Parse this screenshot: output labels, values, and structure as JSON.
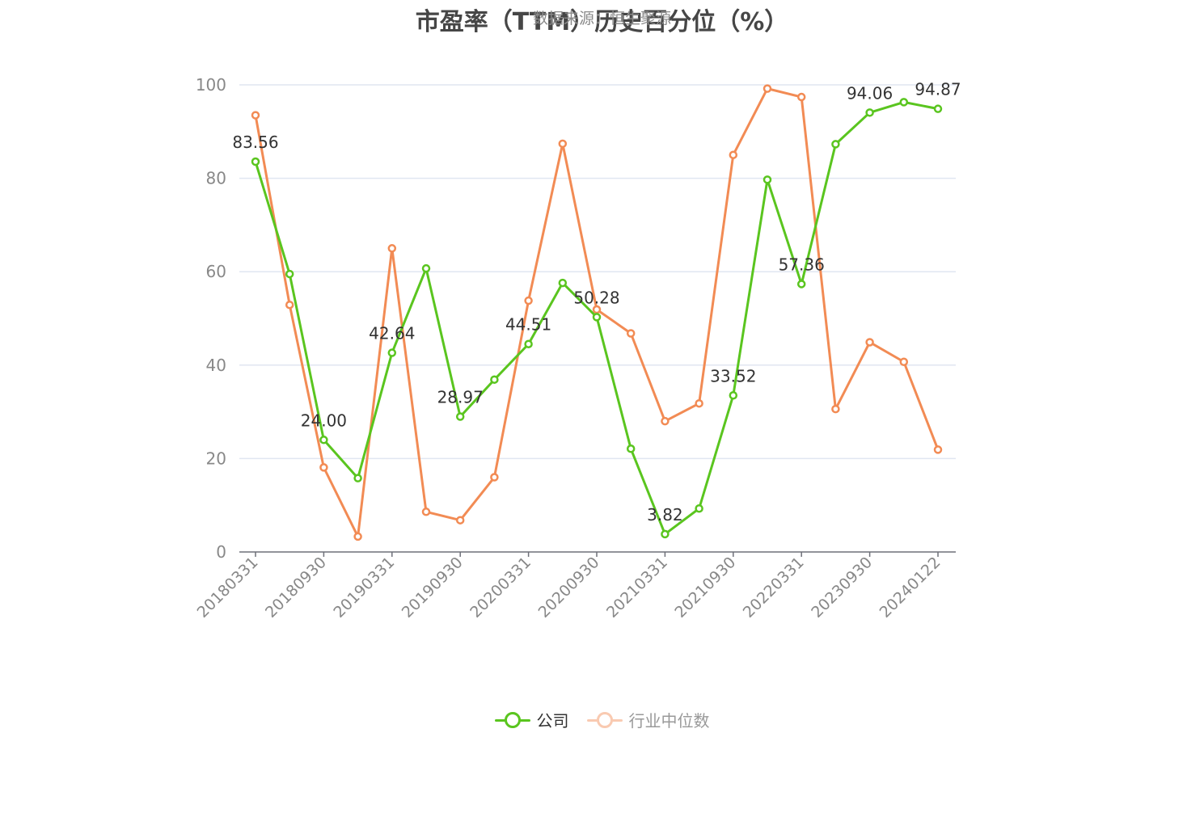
{
  "title": "市盈率（TTM）历史百分位（%）",
  "subtitle": "数据来源：恒生聚源",
  "colors": {
    "company": "#5ac51f",
    "industry": "#f28b54",
    "axis": "#6e7079",
    "grid": "#e0e6f1",
    "label": "#333333"
  },
  "chart_data": {
    "type": "line",
    "x_tick_labels": [
      "20180331",
      "20180930",
      "20190331",
      "20190930",
      "20200331",
      "20200930",
      "20210331",
      "20210930",
      "20220331",
      "20230930",
      "20240122"
    ],
    "x_tick_indices": [
      0,
      2,
      4,
      6,
      8,
      10,
      12,
      14,
      16,
      18,
      20
    ],
    "ylim": [
      0,
      100
    ],
    "y_ticks": [
      0,
      20,
      40,
      60,
      80,
      100
    ],
    "grid": true,
    "legend_position": "bottom-center",
    "series": [
      {
        "name": "公司",
        "values": [
          83.56,
          59.5,
          24.0,
          15.8,
          42.64,
          60.7,
          28.97,
          36.9,
          44.51,
          57.6,
          50.28,
          22.1,
          3.82,
          9.3,
          33.52,
          79.7,
          57.36,
          87.3,
          94.06,
          96.3,
          94.87
        ],
        "labels": [
          "83.56",
          "",
          "24.00",
          "",
          "42.64",
          "",
          "28.97",
          "",
          "44.51",
          "",
          "50.28",
          "",
          "3.82",
          "",
          "33.52",
          "",
          "57.36",
          "",
          "94.06",
          "",
          "94.87"
        ]
      },
      {
        "name": "行业中位数",
        "values": [
          93.5,
          52.9,
          18.1,
          3.3,
          65.0,
          8.6,
          6.8,
          16.0,
          53.8,
          87.4,
          51.9,
          46.8,
          28.0,
          31.8,
          85.0,
          99.2,
          97.4,
          30.6,
          44.9,
          40.7,
          21.9
        ]
      }
    ]
  }
}
